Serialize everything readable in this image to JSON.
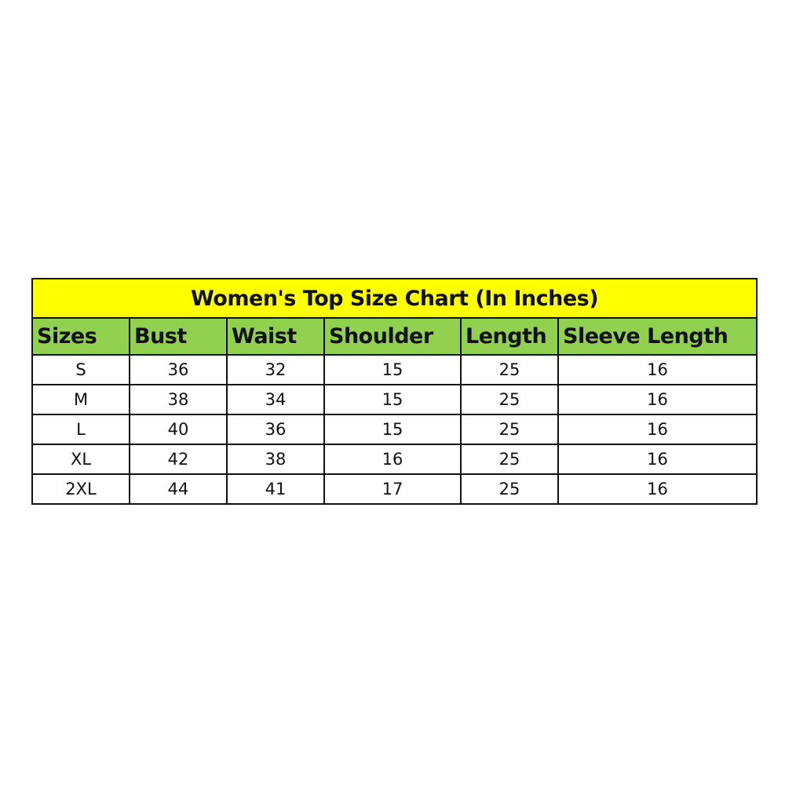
{
  "title": "Women's Top Size Chart (In Inches)",
  "colors": {
    "title_bg": "#ffff00",
    "header_bg": "#92d050",
    "border": "#111111"
  },
  "headers": [
    "Sizes",
    "Bust",
    "Waist",
    "Shoulder",
    "Length",
    "Sleeve Length"
  ],
  "rows": [
    [
      "S",
      "36",
      "32",
      "15",
      "25",
      "16"
    ],
    [
      "M",
      "38",
      "34",
      "15",
      "25",
      "16"
    ],
    [
      "L",
      "40",
      "36",
      "15",
      "25",
      "16"
    ],
    [
      "XL",
      "42",
      "38",
      "16",
      "25",
      "16"
    ],
    [
      "2XL",
      "44",
      "41",
      "17",
      "25",
      "16"
    ]
  ]
}
